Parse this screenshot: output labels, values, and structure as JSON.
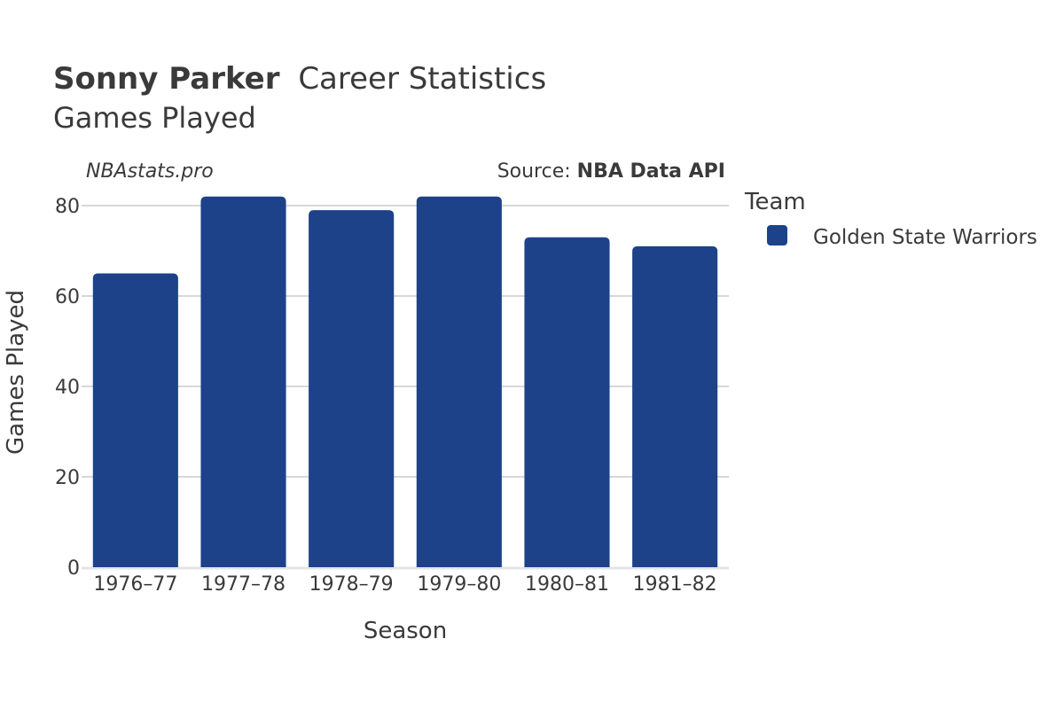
{
  "header": {
    "title_bold": "Sonny Parker",
    "title_rest": "Career Statistics",
    "subtitle": "Games Played"
  },
  "credits": {
    "site": "NBAstats.pro",
    "source_prefix": "Source: ",
    "source_name": "NBA Data API"
  },
  "legend": {
    "title": "Team",
    "items": [
      {
        "label": "Golden State Warriors",
        "color": "#1d428a"
      }
    ]
  },
  "chart_data": {
    "type": "bar",
    "categories": [
      "1976–77",
      "1977–78",
      "1978–79",
      "1979–80",
      "1980–81",
      "1981–82"
    ],
    "series": [
      {
        "name": "Golden State Warriors",
        "values": [
          65,
          82,
          79,
          82,
          73,
          71
        ],
        "color": "#1d428a"
      }
    ],
    "xlabel": "Season",
    "ylabel": "Games Played",
    "ylim": [
      0,
      80
    ],
    "yticks": [
      0,
      20,
      40,
      60,
      80
    ],
    "grid": true,
    "legend_position": "right"
  }
}
